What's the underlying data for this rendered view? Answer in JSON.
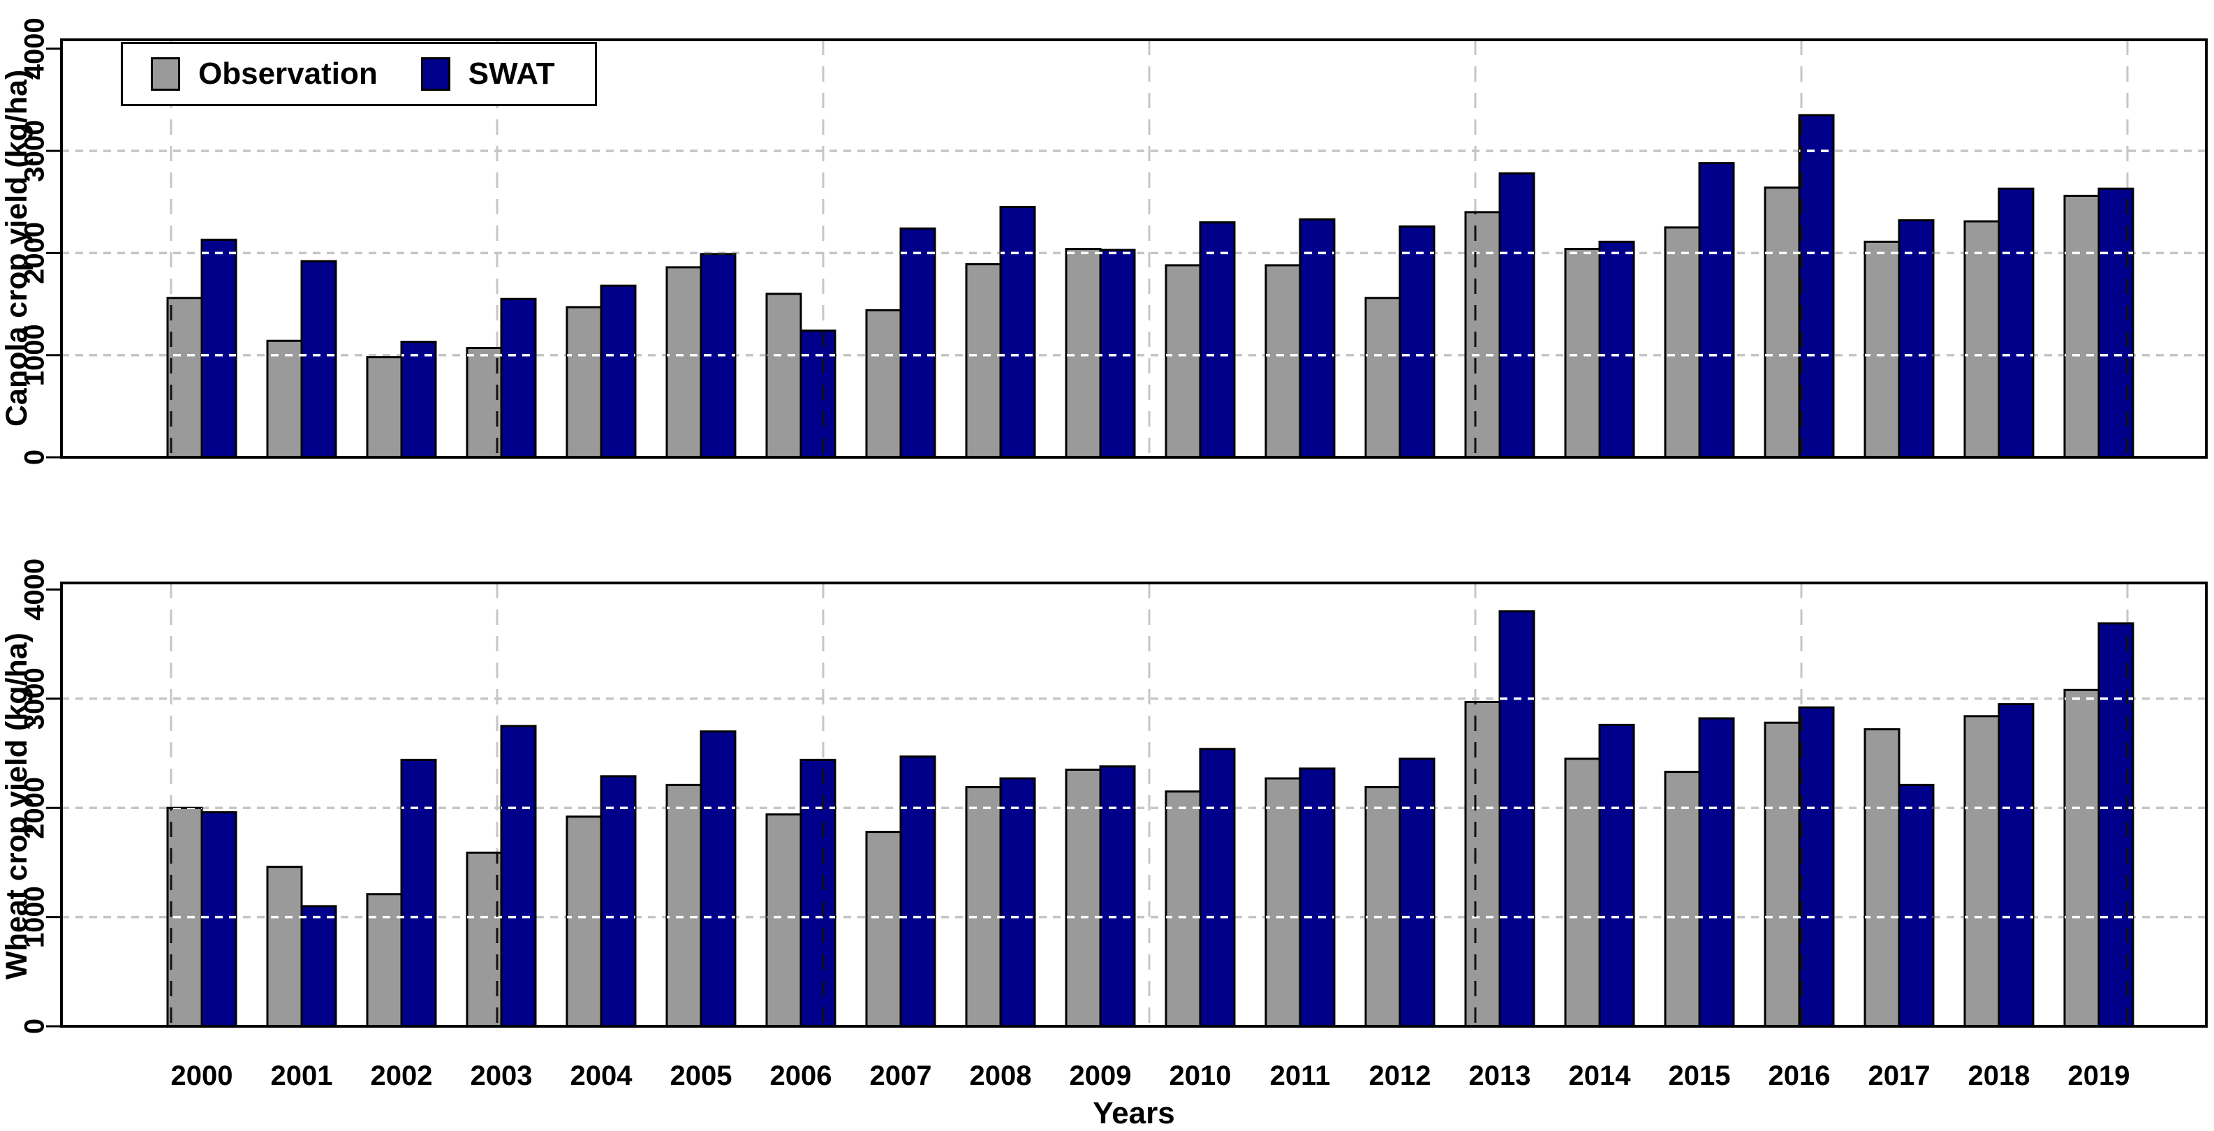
{
  "legend": {
    "observation": "Observation",
    "swat": "SWAT"
  },
  "x_axis": {
    "title": "Years"
  },
  "colors": {
    "observation_bar": "#9a9a9a",
    "swat_bar": "#00008b",
    "bar_outline": "#000000",
    "grid_line": "#c6c6c6",
    "grid_overlay_on_bars": "#ffffff",
    "frame": "#000000"
  },
  "chart_data": [
    {
      "type": "bar",
      "title": "",
      "ylabel": "Canola crop yield (kg/ha)",
      "xlabel": "Years",
      "ylim": [
        0,
        4000
      ],
      "yticks": [
        0,
        1000,
        2000,
        3000,
        4000
      ],
      "grid": true,
      "legend_position": "top-left",
      "categories": [
        "2000",
        "2001",
        "2002",
        "2003",
        "2004",
        "2005",
        "2006",
        "2007",
        "2008",
        "2009",
        "2010",
        "2011",
        "2012",
        "2013",
        "2014",
        "2015",
        "2016",
        "2017",
        "2018",
        "2019"
      ],
      "series": [
        {
          "name": "Observation",
          "values": [
            1560,
            1140,
            980,
            1070,
            1470,
            1860,
            1600,
            1440,
            1890,
            2040,
            1880,
            1880,
            1560,
            2400,
            2040,
            2250,
            2640,
            2110,
            2310,
            2560
          ]
        },
        {
          "name": "SWAT",
          "values": [
            2130,
            1920,
            1130,
            1550,
            1680,
            1990,
            1240,
            2240,
            2450,
            2030,
            2300,
            2330,
            2260,
            2780,
            2110,
            2880,
            3350,
            2320,
            2630,
            2630
          ]
        }
      ]
    },
    {
      "type": "bar",
      "title": "",
      "ylabel": "Wheat crop yield (kg/ha)",
      "xlabel": "Years",
      "ylim": [
        0,
        4000
      ],
      "yticks": [
        0,
        1000,
        2000,
        3000,
        4000
      ],
      "grid": true,
      "categories": [
        "2000",
        "2001",
        "2002",
        "2003",
        "2004",
        "2005",
        "2006",
        "2007",
        "2008",
        "2009",
        "2010",
        "2011",
        "2012",
        "2013",
        "2014",
        "2015",
        "2016",
        "2017",
        "2018",
        "2019"
      ],
      "series": [
        {
          "name": "Observation",
          "values": [
            2000,
            1460,
            1210,
            1590,
            1920,
            2210,
            1940,
            1780,
            2190,
            2350,
            2150,
            2270,
            2190,
            2970,
            2450,
            2330,
            2780,
            2720,
            2840,
            3080
          ]
        },
        {
          "name": "SWAT",
          "values": [
            1960,
            1100,
            2440,
            2750,
            2290,
            2700,
            2440,
            2470,
            2270,
            2380,
            2540,
            2360,
            2450,
            3800,
            2760,
            2820,
            2920,
            2210,
            2950,
            3690
          ]
        }
      ]
    }
  ]
}
